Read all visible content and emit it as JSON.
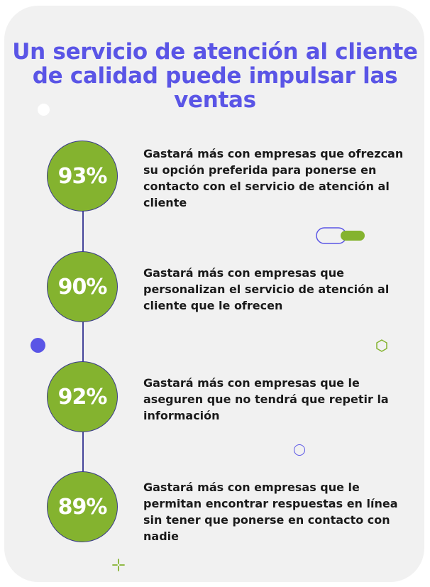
{
  "title": "Un servicio de atención al cliente de calidad puede impulsar las ventas",
  "colors": {
    "title": "#5a55e6",
    "circle_fill": "#84b32f",
    "circle_border": "#3b3c8a",
    "connector": "#45449a",
    "background": "#f1f1f1",
    "text": "#1a1a1a"
  },
  "stats": [
    {
      "value": "93%",
      "text": "Gastará más con empresas que ofrezcan su opción preferida para ponerse en contacto con el servicio de atención al cliente"
    },
    {
      "value": "90%",
      "text": "Gastará más con empresas que personalizan el servicio de atención al cliente que le ofrecen"
    },
    {
      "value": "92%",
      "text": "Gastará más con empresas que le aseguren que no tendrá que repetir la información"
    },
    {
      "value": "89%",
      "text": "Gastará más con empresas que le permitan encontrar respuestas en línea sin tener que ponerse en contacto con nadie"
    }
  ],
  "decorations": [
    "white-dot-icon",
    "toggle-pill-icon",
    "blue-dot-icon",
    "hexagon-outline-icon",
    "circle-outline-icon",
    "plus-sparkle-icon"
  ]
}
